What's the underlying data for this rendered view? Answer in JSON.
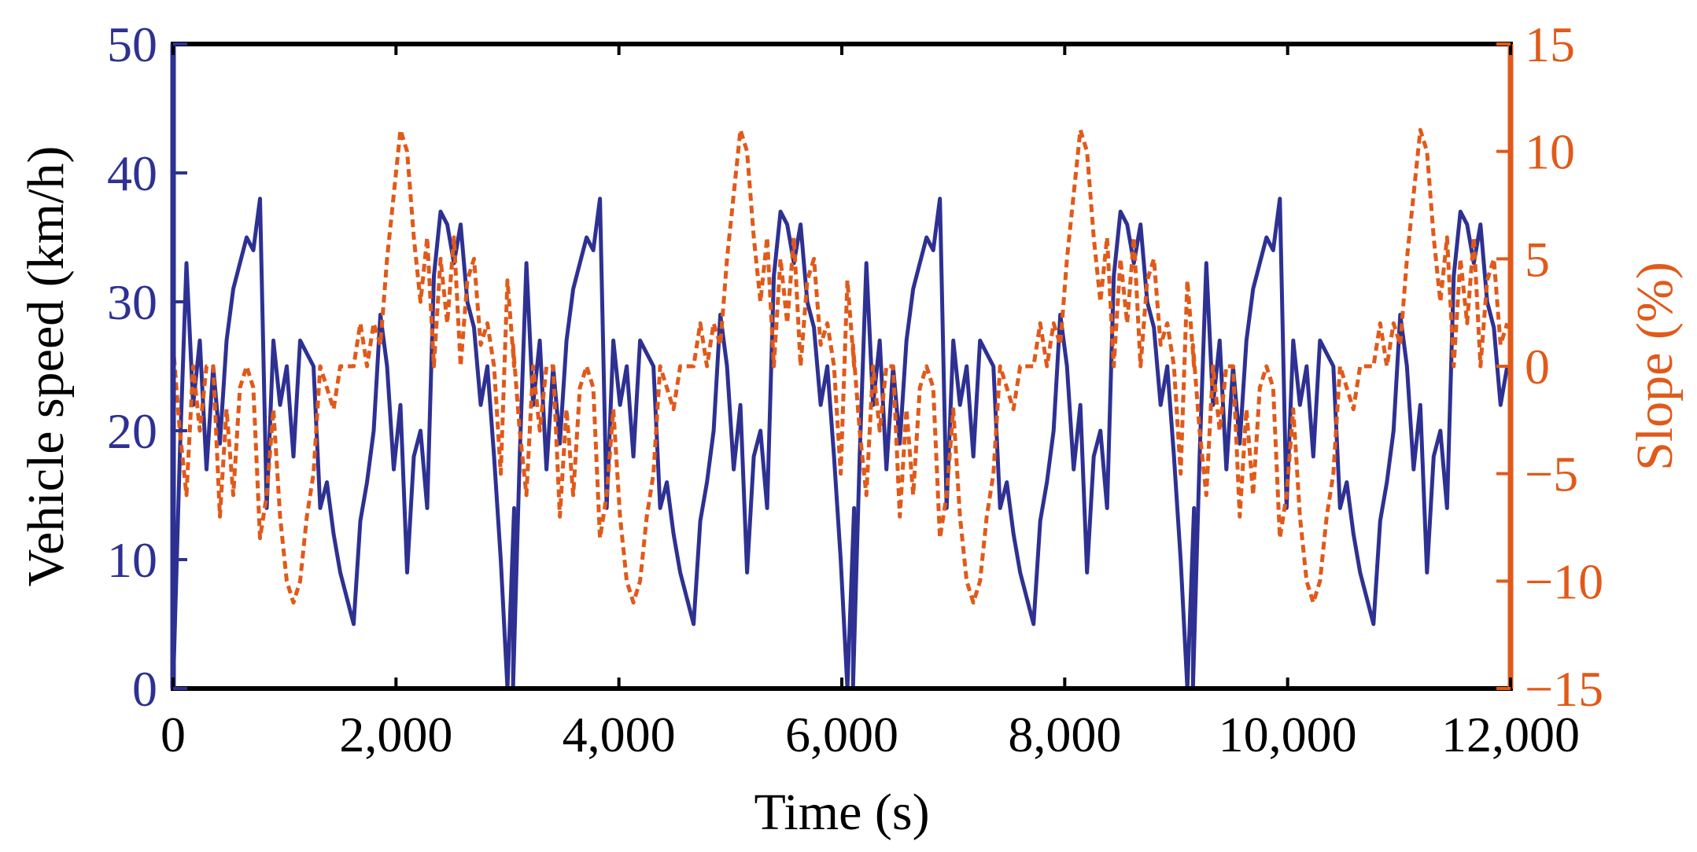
{
  "chart_data": {
    "type": "line",
    "title": "",
    "xlabel": "Time (s)",
    "ylabel_left": "Vehicle speed (km/h)",
    "ylabel_right": "Slope (%)",
    "xlim": [
      0,
      12000
    ],
    "ylim_left": [
      0,
      50
    ],
    "ylim_right": [
      -15,
      15
    ],
    "xticks": [
      0,
      2000,
      4000,
      6000,
      8000,
      10000,
      12000
    ],
    "xtick_labels": [
      "0",
      "2,000",
      "4,000",
      "6,000",
      "8,000",
      "10,000",
      "12,000"
    ],
    "yticks_left": [
      0,
      10,
      20,
      30,
      40,
      50
    ],
    "ytick_labels_left": [
      "0",
      "10",
      "20",
      "30",
      "40",
      "50"
    ],
    "yticks_right": [
      -15,
      -10,
      -5,
      0,
      5,
      10,
      15
    ],
    "ytick_labels_right": [
      "−15",
      "−10",
      "−5",
      "0",
      "5",
      "10",
      "15"
    ],
    "grid": false,
    "colors": {
      "speed": "#2e3192",
      "slope": "#e05a1a",
      "axis": "#000000"
    },
    "series": [
      {
        "name": "Vehicle speed",
        "axis": "left",
        "style": "solid",
        "x": [
          0,
          60,
          120,
          180,
          240,
          300,
          360,
          420,
          480,
          540,
          600,
          660,
          720,
          780,
          840,
          900,
          960,
          1020,
          1080,
          1140,
          1200,
          1260,
          1320,
          1380,
          1440,
          1500,
          1560,
          1620,
          1680,
          1740,
          1800,
          1860,
          1920,
          1980,
          2040,
          2100,
          2160,
          2220,
          2280,
          2340,
          2400,
          2460,
          2520,
          2580,
          2640,
          2700,
          2760,
          2820,
          2880,
          2940,
          3000,
          3060
        ],
        "values": [
          0,
          18,
          33,
          22,
          27,
          17,
          25,
          19,
          27,
          31,
          33,
          35,
          34,
          38,
          14,
          27,
          22,
          25,
          18,
          27,
          26,
          25,
          14,
          16,
          12,
          9,
          7,
          5,
          13,
          16,
          20,
          29,
          25,
          17,
          22,
          9,
          18,
          20,
          14,
          32,
          37,
          36,
          33,
          36,
          30,
          28,
          22,
          25,
          18,
          10,
          0,
          14
        ],
        "repeat_period": 3050,
        "repeat_until": 12000
      },
      {
        "name": "Slope",
        "axis": "right",
        "style": "dashed",
        "x": [
          0,
          60,
          120,
          180,
          240,
          300,
          360,
          420,
          480,
          540,
          600,
          660,
          720,
          780,
          840,
          900,
          960,
          1020,
          1080,
          1140,
          1200,
          1260,
          1320,
          1380,
          1440,
          1500,
          1560,
          1620,
          1680,
          1740,
          1800,
          1860,
          1920,
          1980,
          2040,
          2100,
          2160,
          2220,
          2280,
          2340,
          2400,
          2460,
          2520,
          2580,
          2640,
          2700,
          2760,
          2820,
          2880,
          2940,
          3000,
          3060
        ],
        "values": [
          1,
          -3,
          -6,
          0,
          -3,
          0,
          0,
          -7,
          -2,
          -6,
          -1,
          0,
          -1,
          -8,
          -6,
          -2,
          -7,
          -10,
          -11,
          -10,
          -7,
          -5,
          0,
          -1,
          -2,
          0,
          0,
          0,
          2,
          0,
          2,
          1,
          5,
          8,
          11,
          10,
          6,
          3,
          6,
          0,
          5,
          2,
          6,
          0,
          4,
          5,
          1,
          2,
          0,
          -5,
          4,
          0
        ],
        "repeat_period": 3050,
        "repeat_until": 12000
      }
    ]
  }
}
